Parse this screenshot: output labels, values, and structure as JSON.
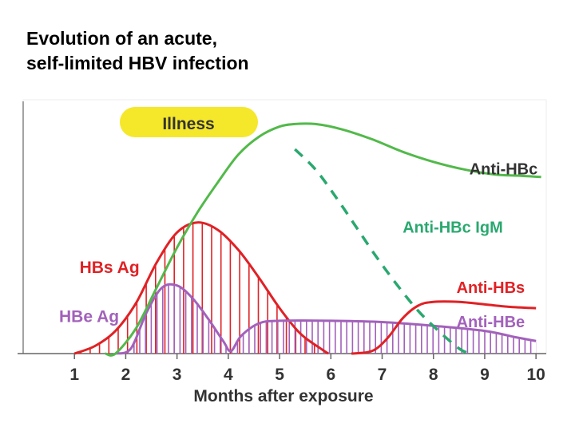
{
  "title_lines": [
    "Evolution of an acute,",
    "self-limited HBV infection"
  ],
  "chart_data": {
    "type": "line",
    "title": "Evolution of an acute, self-limited HBV infection",
    "xlabel": "Months after exposure",
    "ylabel": "",
    "x_ticks": [
      1,
      2,
      3,
      4,
      5,
      6,
      7,
      8,
      9,
      10
    ],
    "xlim": [
      0.0,
      10.2
    ],
    "ylim": [
      0,
      100
    ],
    "grid": false,
    "legend": "inline labels",
    "annotations": [
      {
        "text": "Illness",
        "x_start": 1.1,
        "x_end": 4.4,
        "color": "#f5e72a"
      }
    ],
    "series": [
      {
        "name": "Anti-HBc",
        "color": "#52b94a",
        "style": "solid",
        "label_at": [
          8.7,
          71
        ],
        "points": [
          [
            1.6,
            0
          ],
          [
            1.8,
            0
          ],
          [
            2.2,
            10
          ],
          [
            2.6,
            26
          ],
          [
            3.0,
            42
          ],
          [
            3.4,
            56
          ],
          [
            3.8,
            68
          ],
          [
            4.2,
            79
          ],
          [
            4.6,
            86
          ],
          [
            5.0,
            90
          ],
          [
            5.3,
            91
          ],
          [
            5.7,
            91
          ],
          [
            6.2,
            89
          ],
          [
            6.8,
            85
          ],
          [
            7.4,
            80
          ],
          [
            8.0,
            76
          ],
          [
            8.6,
            73
          ],
          [
            9.2,
            71
          ],
          [
            9.7,
            70.5
          ],
          [
            10.1,
            70
          ]
        ]
      },
      {
        "name": "Anti-HBc IgM",
        "color": "#2aa86f",
        "style": "dashed",
        "label_at": [
          7.4,
          48
        ],
        "points": [
          [
            5.3,
            81
          ],
          [
            5.7,
            73
          ],
          [
            6.1,
            62
          ],
          [
            6.5,
            50
          ],
          [
            6.9,
            38
          ],
          [
            7.3,
            27
          ],
          [
            7.7,
            17
          ],
          [
            8.1,
            9
          ],
          [
            8.5,
            2
          ],
          [
            8.7,
            0
          ]
        ]
      },
      {
        "name": "HBs Ag",
        "color": "#e02125",
        "style": "hatched-area",
        "label_at": [
          1.1,
          32
        ],
        "points": [
          [
            1.0,
            0
          ],
          [
            1.4,
            3
          ],
          [
            1.8,
            9
          ],
          [
            2.2,
            20
          ],
          [
            2.6,
            36
          ],
          [
            3.0,
            48
          ],
          [
            3.4,
            52
          ],
          [
            3.8,
            49
          ],
          [
            4.2,
            41
          ],
          [
            4.6,
            30
          ],
          [
            5.0,
            18
          ],
          [
            5.4,
            8
          ],
          [
            5.8,
            2
          ],
          [
            5.95,
            0
          ]
        ]
      },
      {
        "name": "HBe Ag",
        "color": "#a261bb",
        "style": "hatched-area",
        "label_at": [
          0.7,
          12.5
        ],
        "points": [
          [
            1.8,
            0
          ],
          [
            2.1,
            2
          ],
          [
            2.4,
            16
          ],
          [
            2.7,
            26
          ],
          [
            3.0,
            27
          ],
          [
            3.3,
            22
          ],
          [
            3.6,
            14
          ],
          [
            3.9,
            5
          ],
          [
            4.05,
            1
          ],
          [
            4.25,
            7
          ],
          [
            4.6,
            12
          ],
          [
            5.0,
            13
          ],
          [
            6.0,
            13
          ],
          [
            7.0,
            12.5
          ],
          [
            8.0,
            11
          ],
          [
            9.0,
            9
          ],
          [
            9.6,
            6.5
          ],
          [
            10.0,
            5
          ]
        ]
      },
      {
        "name": "Anti-HBs",
        "color": "#e02125",
        "style": "solid",
        "label_at": [
          8.45,
          24
        ],
        "points": [
          [
            6.4,
            0
          ],
          [
            6.8,
            1
          ],
          [
            7.1,
            6
          ],
          [
            7.4,
            14
          ],
          [
            7.7,
            19
          ],
          [
            8.0,
            20.5
          ],
          [
            8.5,
            20.5
          ],
          [
            9.0,
            19.5
          ],
          [
            9.5,
            18.5
          ],
          [
            10.0,
            18
          ]
        ]
      },
      {
        "name": "Anti-HBe",
        "color": "#a261bb",
        "style": "solid",
        "label_at": [
          8.45,
          10.5
        ],
        "points": []
      }
    ]
  }
}
